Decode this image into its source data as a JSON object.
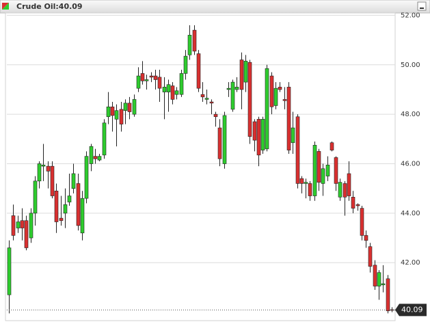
{
  "chart_data": {
    "type": "candlestick",
    "title": "Crude Oil:40.09",
    "up_color": "#2ecc2e",
    "down_color": "#d93030",
    "grid": true,
    "ylim": [
      39.85,
      52.15
    ],
    "yticks": [
      {
        "value": 42,
        "label": "42.00"
      },
      {
        "value": 44,
        "label": "44.00"
      },
      {
        "value": 46,
        "label": "46.00"
      },
      {
        "value": 48,
        "label": "48.00"
      },
      {
        "value": 50,
        "label": "50.00"
      },
      {
        "value": 52,
        "label": "52.00"
      }
    ],
    "last_price": 40.09,
    "open": [
      40.7,
      43.9,
      43.4,
      43.7,
      43.7,
      43.0,
      44.0,
      45.3,
      45.9,
      45.9,
      45.9,
      44.9,
      43.8,
      44.0,
      44.45,
      45.0,
      45.2,
      43.2,
      44.6,
      46.0,
      46.3,
      46.15,
      46.35,
      47.9,
      48.3,
      47.8,
      48.2,
      48.15,
      48.45,
      48.0,
      49.05,
      49.65,
      49.35,
      49.55,
      49.55,
      49.5,
      48.9,
      48.9,
      49.15,
      48.8,
      48.8,
      49.65,
      50.4,
      51.4,
      50.45,
      48.8,
      48.6,
      48.5,
      48.0,
      47.45,
      46.0,
      49.0,
      48.2,
      49.0,
      50.2,
      49.3,
      50.1,
      47.7,
      47.8,
      46.55,
      46.6,
      49.55,
      48.35,
      49.1,
      48.6,
      49.1,
      46.85,
      47.9,
      45.4,
      45.2,
      45.2,
      44.7,
      46.5,
      45.2,
      45.5,
      46.85,
      46.25,
      44.65,
      45.2,
      45.6,
      44.65,
      44.35,
      44.2,
      43.1,
      42.65,
      41.9,
      41.05,
      41.1,
      41.35,
      40.1
    ],
    "high": [
      42.9,
      44.35,
      43.9,
      44.2,
      43.9,
      44.2,
      45.5,
      46.1,
      46.8,
      46.1,
      46.1,
      45.2,
      44.7,
      45.0,
      45.6,
      46.0,
      45.6,
      44.9,
      46.5,
      46.8,
      46.6,
      46.4,
      47.8,
      48.9,
      48.5,
      48.4,
      48.5,
      48.6,
      48.7,
      48.8,
      49.9,
      50.15,
      49.6,
      49.7,
      49.8,
      49.8,
      49.5,
      49.4,
      49.3,
      49.1,
      49.8,
      50.6,
      51.6,
      51.6,
      50.6,
      49.3,
      49.0,
      48.6,
      48.1,
      47.8,
      48.1,
      49.3,
      49.4,
      49.5,
      50.5,
      50.4,
      50.2,
      47.8,
      47.9,
      47.9,
      50.0,
      49.7,
      49.3,
      49.3,
      49.1,
      49.3,
      48.1,
      48.0,
      45.5,
      45.4,
      45.3,
      46.9,
      46.6,
      46.0,
      46.3,
      46.9,
      46.3,
      45.4,
      45.3,
      46.1,
      44.9,
      44.4,
      44.3,
      43.3,
      42.8,
      42.1,
      41.7,
      41.9,
      41.5,
      40.2
    ],
    "low": [
      39.95,
      42.9,
      43.2,
      42.9,
      42.5,
      42.8,
      43.5,
      45.0,
      45.3,
      45.0,
      44.6,
      43.2,
      43.5,
      43.4,
      44.3,
      44.8,
      43.3,
      42.9,
      44.4,
      45.7,
      46.0,
      46.1,
      46.2,
      47.6,
      47.3,
      46.7,
      47.3,
      47.6,
      47.8,
      47.9,
      48.9,
      49.2,
      49.0,
      49.3,
      49.0,
      48.5,
      47.8,
      48.1,
      48.4,
      48.6,
      48.7,
      49.4,
      50.2,
      50.4,
      48.9,
      48.5,
      48.4,
      48.0,
      47.5,
      45.9,
      45.8,
      48.7,
      48.1,
      48.9,
      48.2,
      48.9,
      46.8,
      46.5,
      45.9,
      46.4,
      46.5,
      48.0,
      48.2,
      48.9,
      48.2,
      46.4,
      46.4,
      45.0,
      44.8,
      44.6,
      44.5,
      44.5,
      44.9,
      44.7,
      45.3,
      46.5,
      44.9,
      44.5,
      43.9,
      44.5,
      44.0,
      44.1,
      42.9,
      42.6,
      41.6,
      40.9,
      40.5,
      40.8,
      39.95,
      40.0
    ],
    "close": [
      42.6,
      43.1,
      43.65,
      43.4,
      42.6,
      44.0,
      45.3,
      46.0,
      45.95,
      45.7,
      44.7,
      43.65,
      43.7,
      44.35,
      44.7,
      45.6,
      43.5,
      44.6,
      46.3,
      46.7,
      46.2,
      46.3,
      47.65,
      48.3,
      47.95,
      48.15,
      47.6,
      48.45,
      48.1,
      48.6,
      49.55,
      49.35,
      49.4,
      49.5,
      49.4,
      49.05,
      49.1,
      49.2,
      48.6,
      48.95,
      49.65,
      50.35,
      51.2,
      50.55,
      49.05,
      48.7,
      48.65,
      48.45,
      47.9,
      46.2,
      47.95,
      49.05,
      49.3,
      49.1,
      49.0,
      50.15,
      47.1,
      46.95,
      46.35,
      47.8,
      49.85,
      48.3,
      49.05,
      49.0,
      48.55,
      46.55,
      47.45,
      45.2,
      45.2,
      45.25,
      44.7,
      46.75,
      45.25,
      45.8,
      45.95,
      46.55,
      45.2,
      45.25,
      44.65,
      44.7,
      44.2,
      44.3,
      43.1,
      42.9,
      41.85,
      41.05,
      41.6,
      41.15,
      40.05,
      40.09
    ]
  }
}
